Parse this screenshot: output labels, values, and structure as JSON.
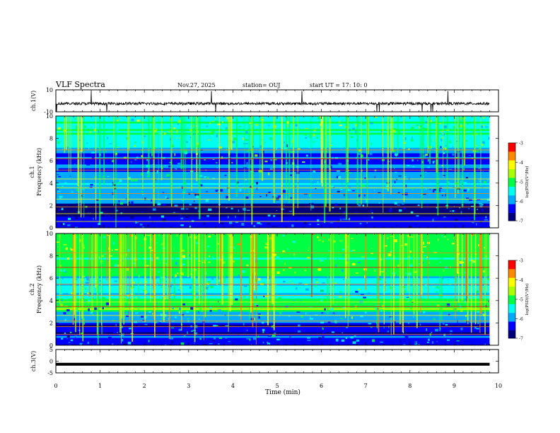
{
  "chart_data": {
    "type": "heatmap",
    "title": "VLF Spectra",
    "date": "Nov.27, 2025",
    "station": "station= OUJ",
    "start_time": "start  UT =   17: 10: 0",
    "xlabel": "Time  (min)",
    "xlim": [
      0,
      10
    ],
    "x_ticks": [
      "0",
      "1",
      "2",
      "3",
      "4",
      "5",
      "6",
      "7",
      "8",
      "9",
      "10"
    ],
    "panels": [
      {
        "id": "waveform-ch1",
        "ylabel": "ch.1(V)",
        "ylim": [
          -10,
          10
        ],
        "y_ticks": [
          "10",
          "-10"
        ],
        "type": "line"
      },
      {
        "id": "spectrogram-ch1",
        "ylabel_channel": "ch.1",
        "ylabel": "Frequency  (kHz)",
        "ylim": [
          0,
          10
        ],
        "y_ticks": [
          "0",
          "2",
          "4",
          "6",
          "8",
          "10"
        ],
        "type": "heatmap"
      },
      {
        "id": "spectrogram-ch2",
        "ylabel_channel": "ch.2",
        "ylabel": "Frequency  (kHz)",
        "ylim": [
          0,
          10
        ],
        "y_ticks": [
          "0",
          "2",
          "4",
          "6",
          "8",
          "10"
        ],
        "type": "heatmap"
      },
      {
        "id": "waveform-ch3",
        "ylabel": "ch.3(V)",
        "ylim": [
          -5,
          5
        ],
        "y_ticks": [
          "5",
          "0",
          "-5"
        ],
        "type": "line"
      }
    ],
    "colorbar": {
      "label": "log(PSD)(V²/Hz)",
      "range": [
        -7,
        -3
      ],
      "ticks": [
        "-3",
        "-4",
        "-5",
        "-6",
        "-7"
      ],
      "colors": [
        "#00007a",
        "#0000ff",
        "#00aaff",
        "#00ffee",
        "#00ff44",
        "#aaff00",
        "#ffff00",
        "#ff8800",
        "#ff0000",
        "#ff00aa",
        "#ffffff"
      ]
    },
    "data_end_min": 9.8
  }
}
